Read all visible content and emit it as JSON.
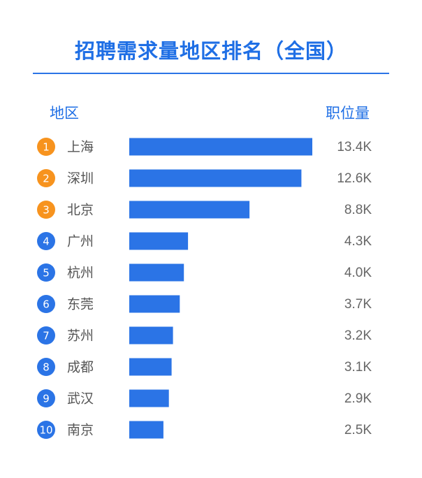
{
  "title": "招聘需求量地区排名（全国）",
  "headers": {
    "region": "地区",
    "count": "职位量"
  },
  "colors": {
    "title": "#1f6fe5",
    "bar": "#2b74e6",
    "rank_top3": "#f7931e",
    "rank_other": "#2b74e6"
  },
  "chart_data": {
    "type": "bar",
    "orientation": "horizontal",
    "categories": [
      "上海",
      "深圳",
      "北京",
      "广州",
      "杭州",
      "东莞",
      "苏州",
      "成都",
      "武汉",
      "南京"
    ],
    "ranks": [
      "1",
      "2",
      "3",
      "4",
      "5",
      "6",
      "7",
      "8",
      "9",
      "10"
    ],
    "values": [
      13.4,
      12.6,
      8.8,
      4.3,
      4.0,
      3.7,
      3.2,
      3.1,
      2.9,
      2.5
    ],
    "value_labels": [
      "13.4K",
      "12.6K",
      "8.8K",
      "4.3K",
      "4.0K",
      "3.7K",
      "3.2K",
      "3.1K",
      "2.9K",
      "2.5K"
    ],
    "xlim": [
      0,
      13.4
    ],
    "grid": false,
    "legend": "none"
  }
}
